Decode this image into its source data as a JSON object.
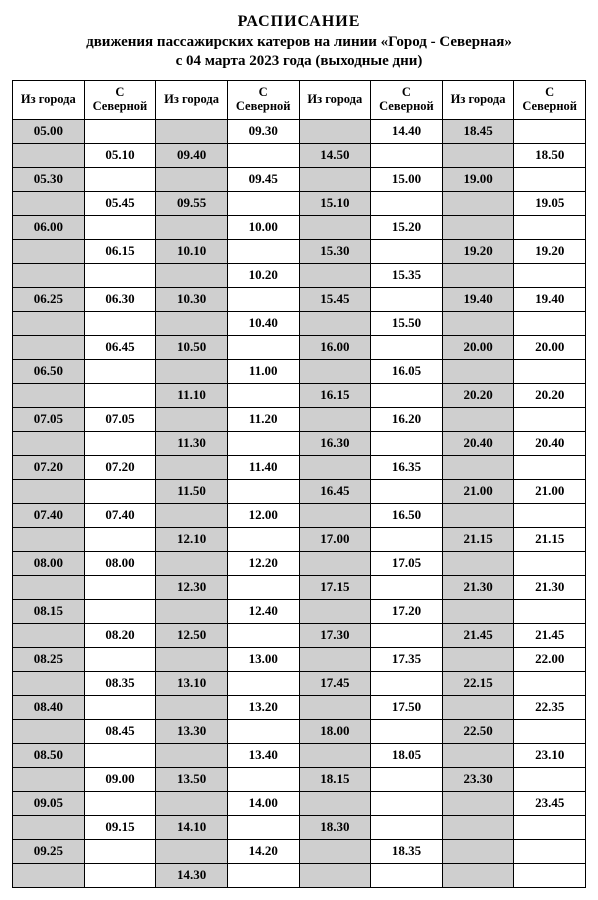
{
  "title": {
    "line1": "РАСПИСАНИЕ",
    "line2": "движения  пассажирских  катеров  на линии  «Город - Северная»",
    "line3": "с  04  марта  2023  года (выходные дни)"
  },
  "headers": [
    "Из города",
    "С Северной",
    "Из города",
    "С Северной",
    "Из города",
    "С Северной",
    "Из города",
    "С Северной"
  ],
  "rows": [
    [
      "05.00",
      "",
      "",
      "09.30",
      "",
      "14.40",
      "18.45",
      ""
    ],
    [
      "",
      "05.10",
      "09.40",
      "",
      "14.50",
      "",
      "",
      "18.50"
    ],
    [
      "05.30",
      "",
      "",
      "09.45",
      "",
      "15.00",
      "19.00",
      ""
    ],
    [
      "",
      "05.45",
      "09.55",
      "",
      "15.10",
      "",
      "",
      "19.05"
    ],
    [
      "06.00",
      "",
      "",
      "10.00",
      "",
      "15.20",
      "",
      ""
    ],
    [
      "",
      "06.15",
      "10.10",
      "",
      "15.30",
      "",
      "19.20",
      "19.20"
    ],
    [
      "",
      "",
      "",
      "10.20",
      "",
      "15.35",
      "",
      ""
    ],
    [
      "06.25",
      "06.30",
      "10.30",
      "",
      "15.45",
      "",
      "19.40",
      "19.40"
    ],
    [
      "",
      "",
      "",
      "10.40",
      "",
      "15.50",
      "",
      ""
    ],
    [
      "",
      "06.45",
      "10.50",
      "",
      "16.00",
      "",
      "20.00",
      "20.00"
    ],
    [
      "06.50",
      "",
      "",
      "11.00",
      "",
      "16.05",
      "",
      ""
    ],
    [
      "",
      "",
      "11.10",
      "",
      "16.15",
      "",
      "20.20",
      "20.20"
    ],
    [
      "07.05",
      "07.05",
      "",
      "11.20",
      "",
      "16.20",
      "",
      ""
    ],
    [
      "",
      "",
      "11.30",
      "",
      "16.30",
      "",
      "20.40",
      "20.40"
    ],
    [
      "07.20",
      "07.20",
      "",
      "11.40",
      "",
      "16.35",
      "",
      ""
    ],
    [
      "",
      "",
      "11.50",
      "",
      "16.45",
      "",
      "21.00",
      "21.00"
    ],
    [
      "07.40",
      "07.40",
      "",
      "12.00",
      "",
      "16.50",
      "",
      ""
    ],
    [
      "",
      "",
      "12.10",
      "",
      "17.00",
      "",
      "21.15",
      "21.15"
    ],
    [
      "08.00",
      "08.00",
      "",
      "12.20",
      "",
      "17.05",
      "",
      ""
    ],
    [
      "",
      "",
      "12.30",
      "",
      "17.15",
      "",
      "21.30",
      "21.30"
    ],
    [
      "08.15",
      "",
      "",
      "12.40",
      "",
      "17.20",
      "",
      ""
    ],
    [
      "",
      "08.20",
      "12.50",
      "",
      "17.30",
      "",
      "21.45",
      "21.45"
    ],
    [
      "08.25",
      "",
      "",
      "13.00",
      "",
      "17.35",
      "",
      "22.00"
    ],
    [
      "",
      "08.35",
      "13.10",
      "",
      "17.45",
      "",
      "22.15",
      ""
    ],
    [
      "08.40",
      "",
      "",
      "13.20",
      "",
      "17.50",
      "",
      "22.35"
    ],
    [
      "",
      "08.45",
      "13.30",
      "",
      "18.00",
      "",
      "22.50",
      ""
    ],
    [
      "08.50",
      "",
      "",
      "13.40",
      "",
      "18.05",
      "",
      "23.10"
    ],
    [
      "",
      "09.00",
      "13.50",
      "",
      "18.15",
      "",
      "23.30",
      ""
    ],
    [
      "09.05",
      "",
      "",
      "14.00",
      "",
      "",
      "",
      "23.45"
    ],
    [
      "",
      "09.15",
      "14.10",
      "",
      "18.30",
      "",
      "",
      ""
    ],
    [
      "09.25",
      "",
      "",
      "14.20",
      "",
      "18.35",
      "",
      ""
    ],
    [
      "",
      "",
      "14.30",
      "",
      "",
      "",
      "",
      ""
    ]
  ],
  "colors": {
    "gray": "#cfcfcf",
    "white": "#ffffff",
    "border": "#000000"
  },
  "grayColumns": [
    0,
    2,
    4,
    6
  ]
}
